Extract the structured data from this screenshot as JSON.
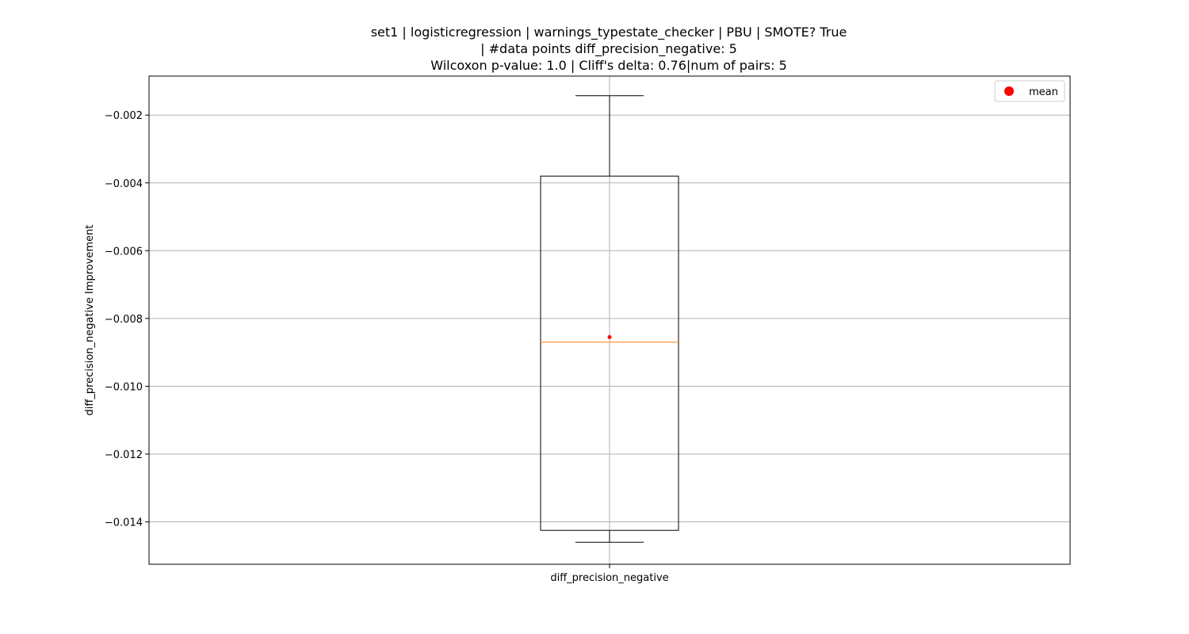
{
  "chart_data": {
    "type": "box",
    "title_lines": [
      "set1 | logisticregression | warnings_typestate_checker | PBU | SMOTE? True",
      "| #data points diff_precision_negative: 5",
      "Wilcoxon p-value: 1.0 | Cliff's delta: 0.76|num of pairs: 5"
    ],
    "xlabel": "",
    "ylabel": "diff_precision_negative Improvement",
    "categories": [
      "diff_precision_negative"
    ],
    "ylim": [
      -0.01525,
      -0.00085
    ],
    "yticks": [
      -0.002,
      -0.004,
      -0.006,
      -0.008,
      -0.01,
      -0.012,
      -0.014
    ],
    "ytick_labels": [
      "−0.002",
      "−0.004",
      "−0.006",
      "−0.008",
      "−0.010",
      "−0.012",
      "−0.014"
    ],
    "grid": true,
    "legend": {
      "position": "top-right",
      "entries": [
        {
          "label": "mean",
          "color": "#ff0000",
          "marker": "circle"
        }
      ]
    },
    "boxes": [
      {
        "category": "diff_precision_negative",
        "whisker_low": -0.0146,
        "q1": -0.01425,
        "median": -0.0087,
        "q3": -0.0038,
        "whisker_high": -0.00143,
        "mean": -0.00855
      }
    ],
    "colors": {
      "box": "#000000",
      "median": "#ff7f0e",
      "mean": "#ff0000",
      "grid": "#b0b0b0"
    }
  }
}
